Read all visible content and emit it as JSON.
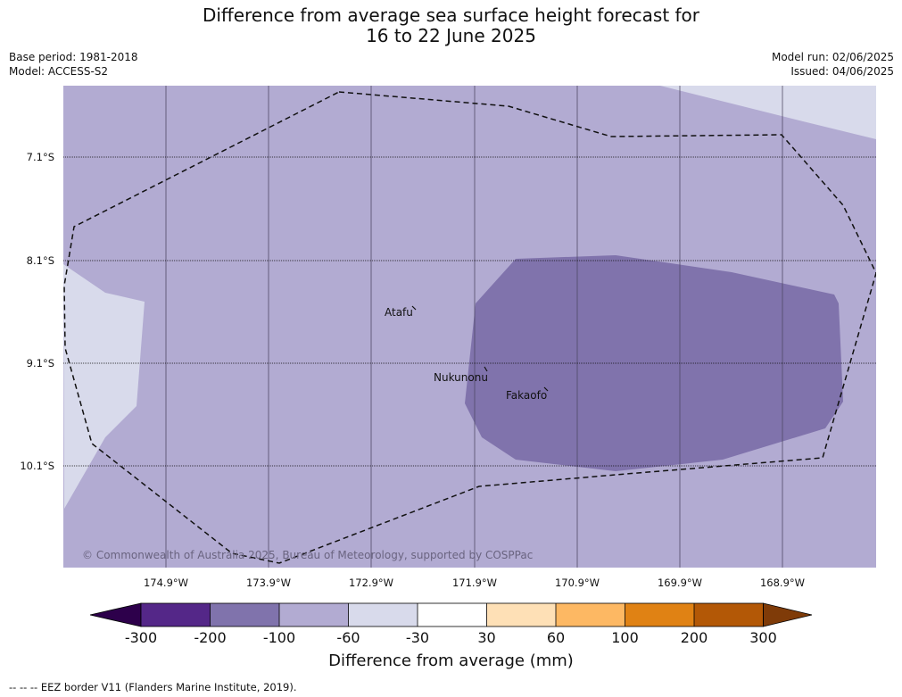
{
  "title_line1": "Difference from average sea surface height forecast for",
  "title_line2": "16 to 22 June 2025",
  "base_period": "Base period: 1981-2018",
  "model": "Model: ACCESS-S2",
  "model_run": "Model run: 02/06/2025",
  "issued": "Issued: 04/06/2025",
  "latitudes": [
    "7.1°S",
    "8.1°S",
    "9.1°S",
    "10.1°S"
  ],
  "longitudes": [
    "174.9°W",
    "173.9°W",
    "172.9°W",
    "171.9°W",
    "170.9°W",
    "169.9°W",
    "168.9°W"
  ],
  "places": {
    "atafu": "Atafu",
    "nukunonu": "Nukunonu",
    "fakaofo": "Fakaofo"
  },
  "copyright": "© Commonwealth of Australia 2025, Bureau of Meteorology, supported by COSPPac",
  "colorbar": {
    "ticks": [
      "-300",
      "-200",
      "-100",
      "-60",
      "-30",
      "30",
      "60",
      "100",
      "200",
      "300"
    ],
    "colors": {
      "under": "#2d004b",
      "bins": [
        "#542788",
        "#8073ac",
        "#b2abd2",
        "#d8daeb",
        "#ffffff",
        "#fee0b6",
        "#fdb863",
        "#e08214",
        "#b35806"
      ],
      "over": "#7f3b08"
    },
    "label": "Difference from average (mm)"
  },
  "map_fill_colors": {
    "minus_60_to_minus_30": "#d8daeb",
    "minus_100_to_minus_60": "#b2abd2",
    "minus_200_to_minus_100": "#8073ac"
  },
  "footnote": "--  --  -- EEZ border V11 (Flanders Marine Institute, 2019)."
}
